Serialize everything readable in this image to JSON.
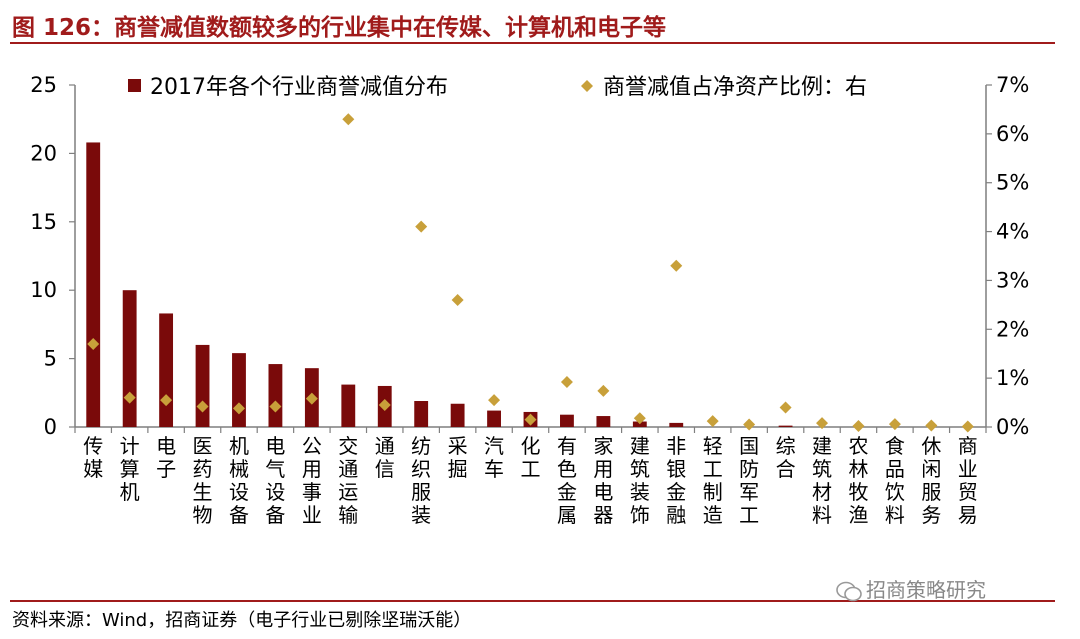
{
  "figure": {
    "title": "图 126：商誉减值数额较多的行业集中在传媒、计算机和电子等",
    "source": "资料来源：Wind，招商证券（电子行业已剔除坚瑞沃能）",
    "watermark": "招商策略研究"
  },
  "colors": {
    "bar": "#7a0a0a",
    "marker": "#c8a03a",
    "title": "#a01b1b",
    "axis": "#7f7f7f"
  },
  "chart_data": {
    "type": "bar",
    "categories": [
      "传媒",
      "计算机",
      "电子",
      "医药生物",
      "机械设备",
      "电气设备",
      "公用事业",
      "交通运输",
      "通信",
      "纺织服装",
      "采掘",
      "汽车",
      "化工",
      "有色金属",
      "家用电器",
      "建筑装饰",
      "非银金融",
      "轻工制造",
      "国防军工",
      "综合",
      "建筑材料",
      "农林牧渔",
      "食品饮料",
      "休闲服务",
      "商业贸易"
    ],
    "series": [
      {
        "name": "2017年各个行业商誉减值分布",
        "type": "bar",
        "axis": "left",
        "values": [
          20.8,
          10.0,
          8.3,
          6.0,
          5.4,
          4.6,
          4.3,
          3.1,
          3.0,
          1.9,
          1.7,
          1.2,
          1.1,
          0.9,
          0.8,
          0.4,
          0.3,
          0.0,
          0.0,
          0.1,
          0.0,
          0.0,
          0.0,
          0.0,
          0.0
        ]
      },
      {
        "name": "商誉减值占净资产比例：右",
        "type": "scatter",
        "axis": "right",
        "values": [
          1.7,
          0.6,
          0.55,
          0.42,
          0.38,
          0.42,
          0.58,
          6.3,
          0.45,
          4.1,
          2.6,
          0.55,
          0.15,
          0.92,
          0.74,
          0.18,
          3.3,
          0.12,
          0.05,
          0.4,
          0.08,
          0.02,
          0.06,
          0.03,
          0.01
        ]
      }
    ],
    "y_left": {
      "min": 0,
      "max": 25,
      "ticks": [
        0,
        5,
        10,
        15,
        20,
        25
      ]
    },
    "y_right": {
      "min": 0,
      "max": 7,
      "ticks": [
        "0%",
        "1%",
        "2%",
        "3%",
        "4%",
        "5%",
        "6%",
        "7%"
      ]
    },
    "legend_position": "top"
  }
}
